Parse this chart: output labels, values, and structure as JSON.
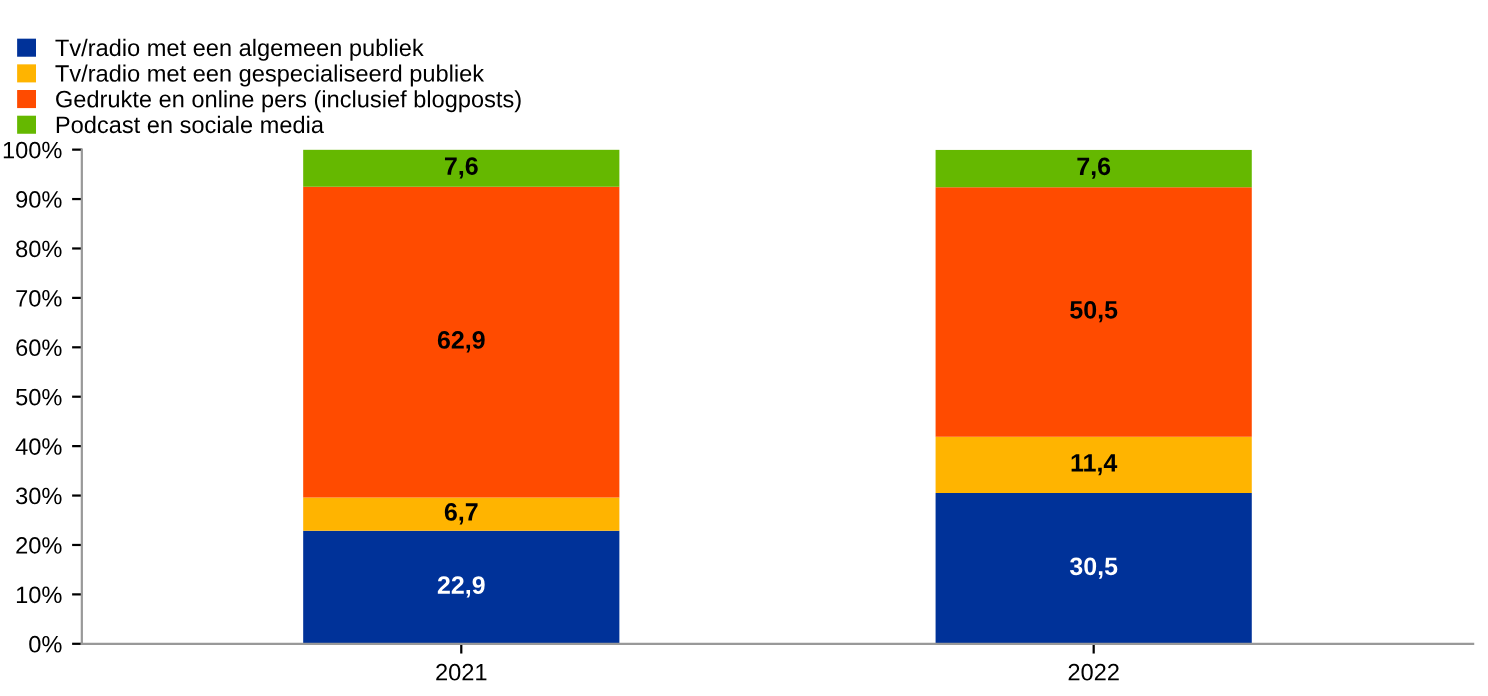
{
  "chart_data": {
    "type": "bar",
    "stacked": true,
    "categories": [
      "2021",
      "2022"
    ],
    "series": [
      {
        "name": "Tv/radio met een algemeen publiek",
        "color": "#003299",
        "values": [
          22.9,
          30.5
        ],
        "value_labels": [
          "22,9",
          "30,5"
        ]
      },
      {
        "name": "Tv/radio met een gespecialiseerd publiek",
        "color": "#ffb400",
        "values": [
          6.7,
          11.4
        ],
        "value_labels": [
          "6,7",
          "11,4"
        ]
      },
      {
        "name": "Gedrukte en online pers (inclusief blogposts)",
        "color": "#ff4b00",
        "values": [
          62.9,
          50.5
        ],
        "value_labels": [
          "62,9",
          "50,5"
        ]
      },
      {
        "name": "Podcast en sociale media",
        "color": "#65b800",
        "values": [
          7.6,
          7.6
        ],
        "value_labels": [
          "7,6",
          "7,6"
        ]
      }
    ],
    "ylim": [
      0,
      100
    ],
    "yticks": [
      {
        "value": 0,
        "label": "0%"
      },
      {
        "value": 10,
        "label": "10%"
      },
      {
        "value": 20,
        "label": "20%"
      },
      {
        "value": 30,
        "label": "30%"
      },
      {
        "value": 40,
        "label": "40%"
      },
      {
        "value": 50,
        "label": "50%"
      },
      {
        "value": 60,
        "label": "60%"
      },
      {
        "value": 70,
        "label": "70%"
      },
      {
        "value": 80,
        "label": "80%"
      },
      {
        "value": 90,
        "label": "90%"
      },
      {
        "value": 100,
        "label": "100%"
      }
    ],
    "legend": "top left",
    "grid": false
  }
}
